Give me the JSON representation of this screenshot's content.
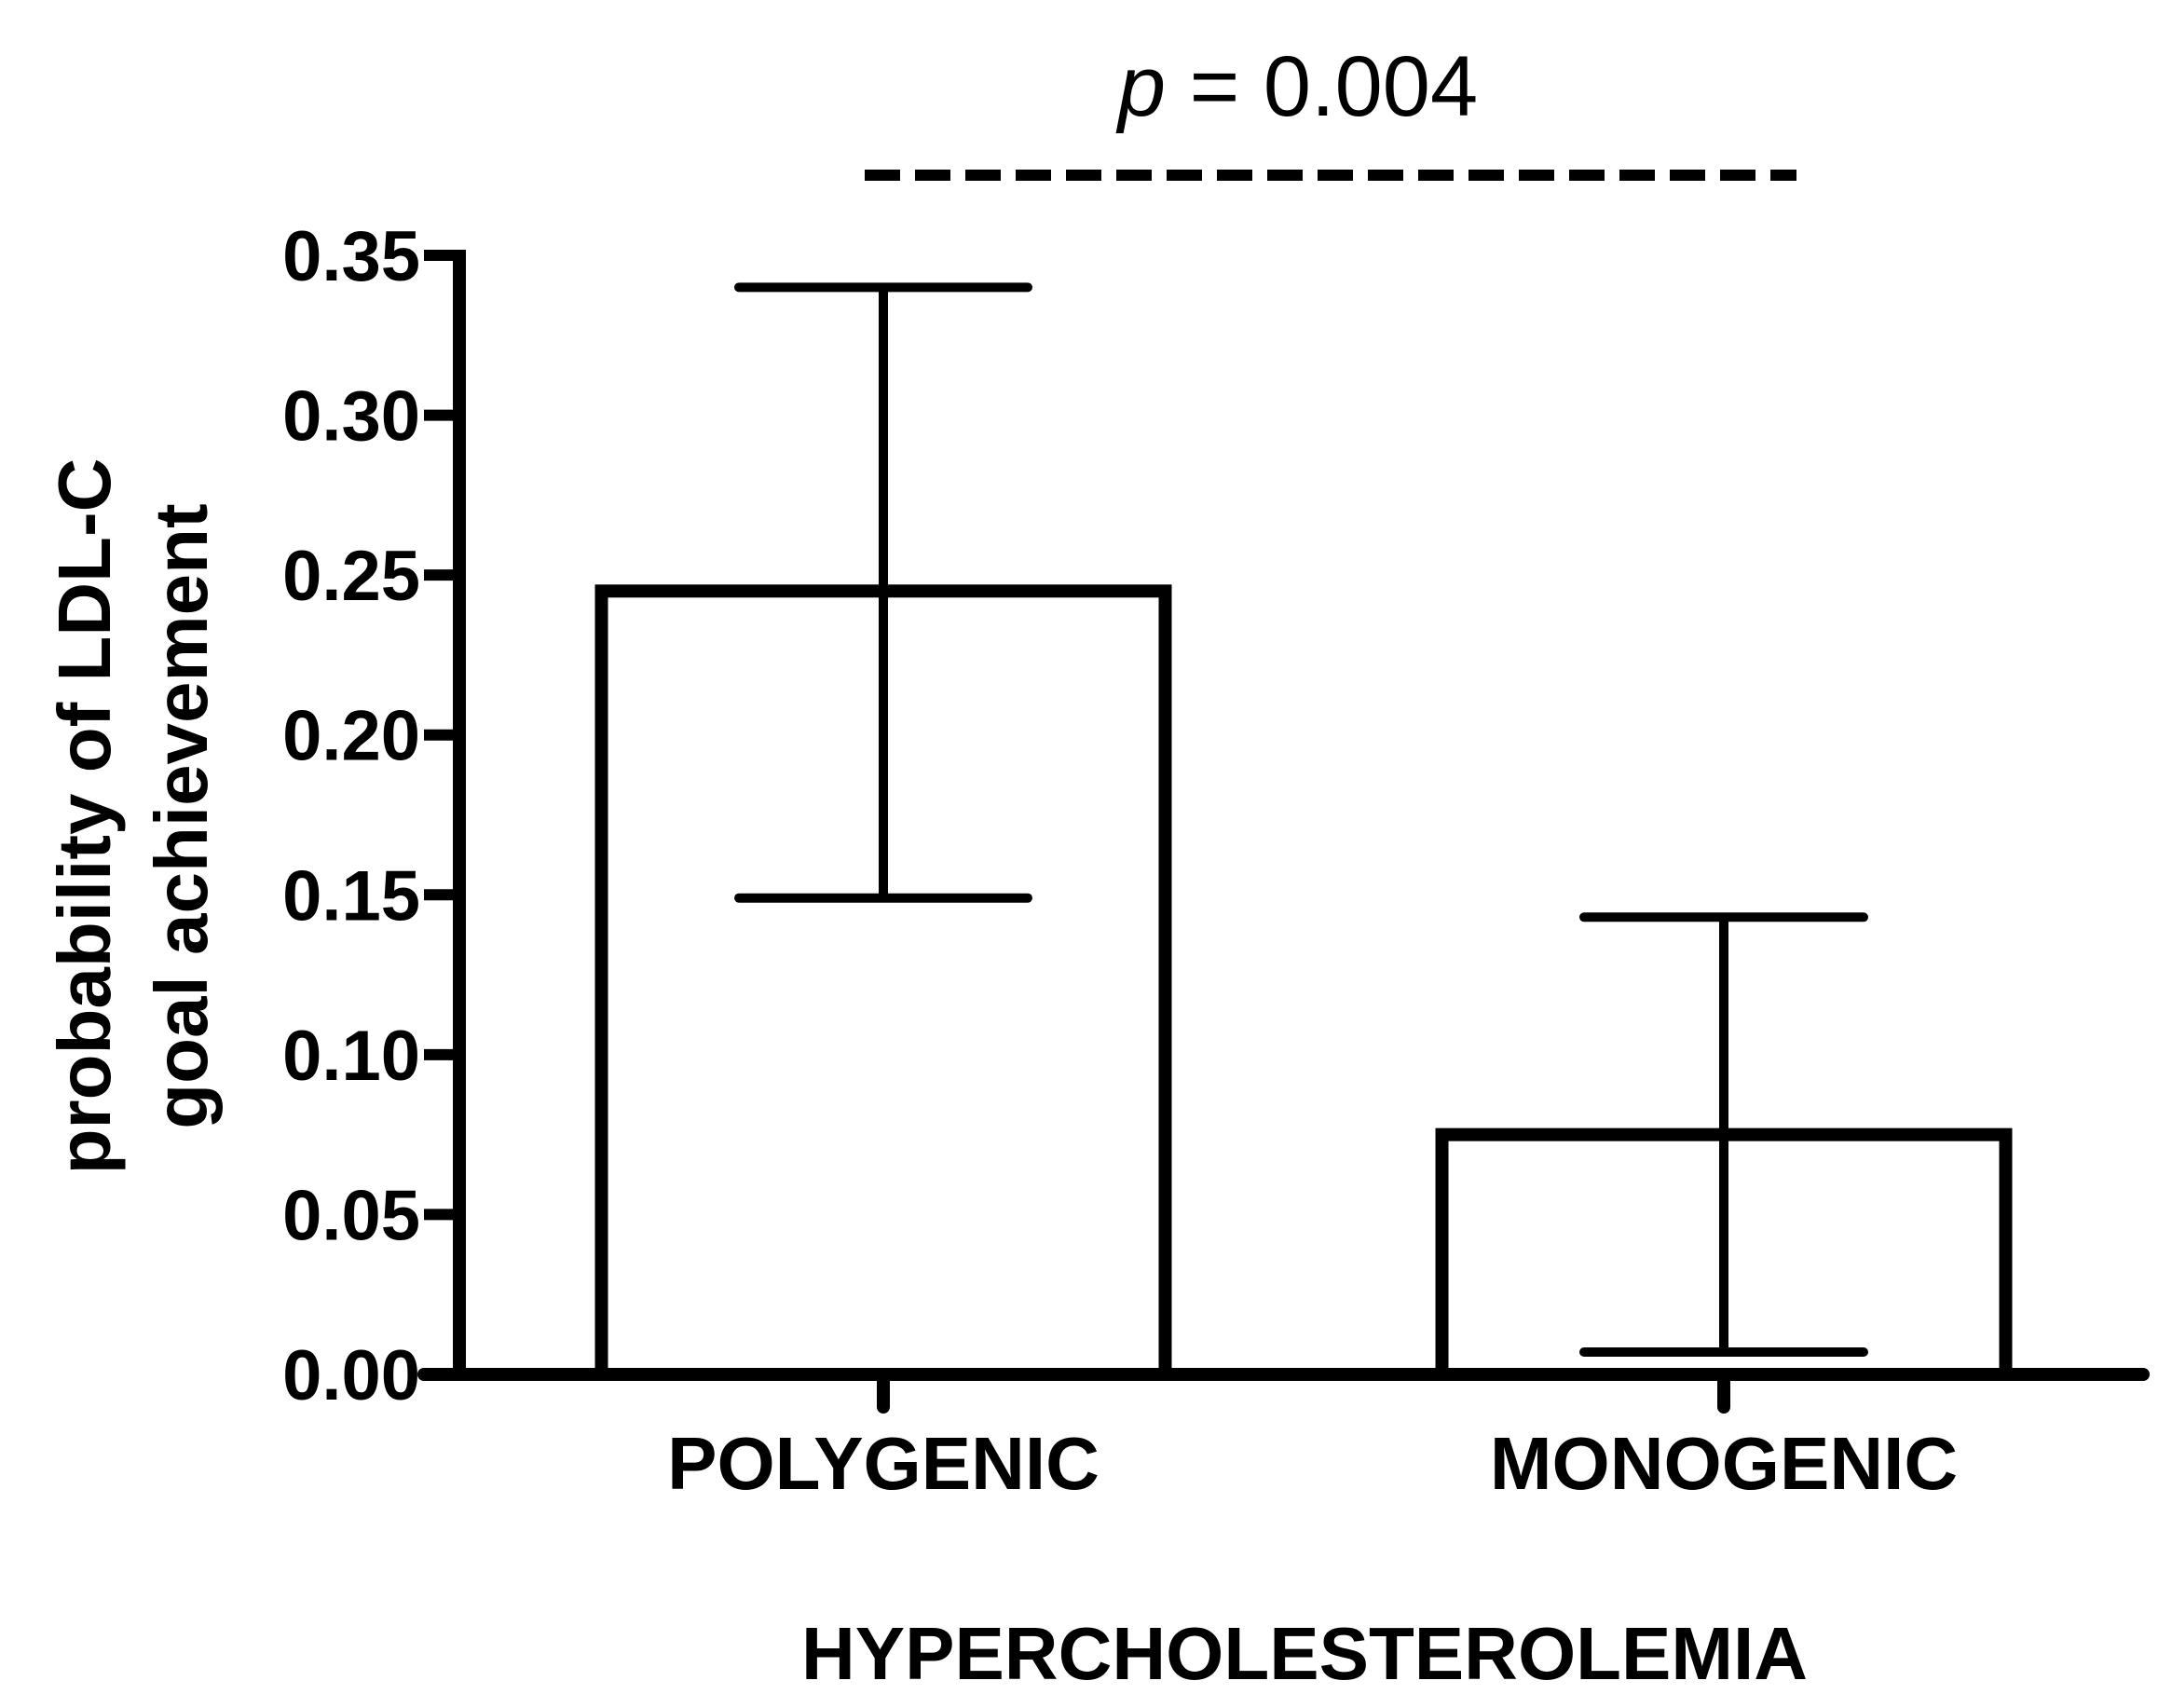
{
  "chart_data": {
    "type": "bar",
    "categories": [
      "POLYGENIC",
      "MONOGENIC"
    ],
    "values": [
      0.245,
      0.075
    ],
    "error_bars": {
      "upper": [
        0.34,
        0.143
      ],
      "lower": [
        0.149,
        0.007
      ]
    },
    "ylabel_line1": "probability of LDL-C",
    "ylabel_line2": "goal achievement",
    "xlabel": "HYPERCHOLESTEROLEMIA",
    "ylim": [
      0,
      0.35
    ],
    "yticks": [
      "0.00",
      "0.05",
      "0.10",
      "0.15",
      "0.20",
      "0.25",
      "0.30",
      "0.35"
    ],
    "ytick_values": [
      0,
      0.05,
      0.1,
      0.15,
      0.2,
      0.25,
      0.3,
      0.35
    ],
    "grid": false,
    "bar_fill": "#ffffff",
    "stroke_color": "#000000",
    "annotation": {
      "p_symbol": "p",
      "p_rest": " = 0.004",
      "style": "dashed bracket above bars"
    }
  }
}
